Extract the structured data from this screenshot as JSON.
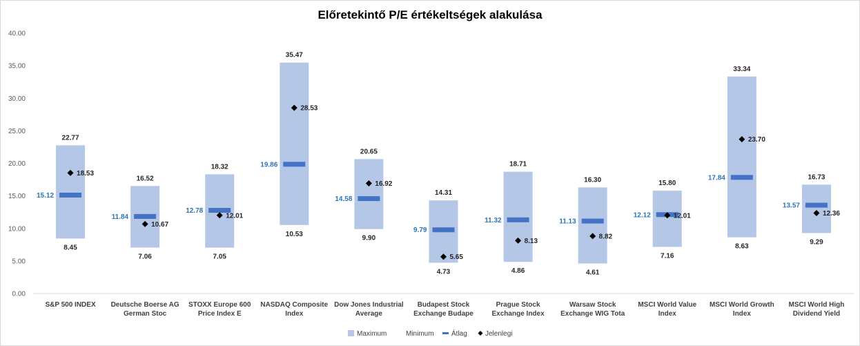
{
  "chart_data": {
    "type": "bar",
    "title": "Előretekintő P/E értékeltségek alakulása",
    "ylim": [
      0,
      40
    ],
    "yticks": [
      "0.00",
      "5.00",
      "10.00",
      "15.00",
      "20.00",
      "25.00",
      "30.00",
      "35.00",
      "40.00"
    ],
    "grid": false,
    "legend_position": "bottom",
    "categories": [
      [
        "S&P 500 INDEX"
      ],
      [
        "Deutsche Boerse AG",
        "German Stoc"
      ],
      [
        "STOXX Europe 600",
        "Price Index E"
      ],
      [
        "NASDAQ Composite",
        "Index"
      ],
      [
        "Dow Jones Industrial",
        "Average"
      ],
      [
        "Budapest Stock",
        "Exchange Budape"
      ],
      [
        "Prague Stock",
        "Exchange Index"
      ],
      [
        "Warsaw Stock",
        "Exchange WIG Tota"
      ],
      [
        "MSCI World Value",
        "Index"
      ],
      [
        "MSCI World Growth",
        "Index"
      ],
      [
        "MSCI World High",
        "Dividend Yield"
      ]
    ],
    "series": [
      {
        "name": "Maximum",
        "values": [
          22.77,
          16.52,
          18.32,
          35.47,
          20.65,
          14.31,
          18.71,
          16.3,
          15.8,
          33.34,
          16.73
        ]
      },
      {
        "name": "Minimum",
        "values": [
          8.45,
          7.06,
          7.05,
          10.53,
          9.9,
          4.73,
          4.86,
          4.61,
          7.16,
          8.63,
          9.29
        ]
      },
      {
        "name": "Átlag",
        "values": [
          15.12,
          11.84,
          12.78,
          19.86,
          14.58,
          9.79,
          11.32,
          11.13,
          12.12,
          17.84,
          13.57
        ]
      },
      {
        "name": "Jelenlegi",
        "values": [
          18.53,
          10.67,
          12.01,
          28.53,
          16.92,
          5.65,
          8.13,
          8.82,
          12.01,
          23.7,
          12.36
        ]
      }
    ],
    "colors": {
      "range_fill": "#b4c7e7",
      "average": "#4472c4",
      "average_label": "#2e75b6",
      "current": "#000000"
    }
  }
}
